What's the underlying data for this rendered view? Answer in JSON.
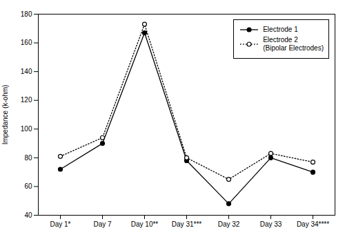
{
  "chart_data": {
    "type": "line",
    "categories": [
      "Day 1*",
      "Day 7",
      "Day 10**",
      "Day 31***",
      "Day 32",
      "Day 33",
      "Day 34****"
    ],
    "series": [
      {
        "name": "Electrode 1",
        "color": "#000000",
        "values": [
          72,
          90,
          167,
          78,
          48,
          80,
          70
        ],
        "line_style": "solid",
        "marker": "circle"
      },
      {
        "name": "Electrode 2\n(Bipolar Electrodes)",
        "color": "#000000",
        "values": [
          81,
          94,
          173,
          80,
          65,
          83,
          77
        ],
        "line_style": "dotted",
        "marker": "open_circle"
      }
    ],
    "ylabel": "Impedance (k-ohm)",
    "ylim": [
      40,
      180
    ],
    "yticks": [
      40,
      60,
      80,
      100,
      120,
      140,
      160,
      180
    ],
    "grid": false,
    "legend": "upper right"
  }
}
